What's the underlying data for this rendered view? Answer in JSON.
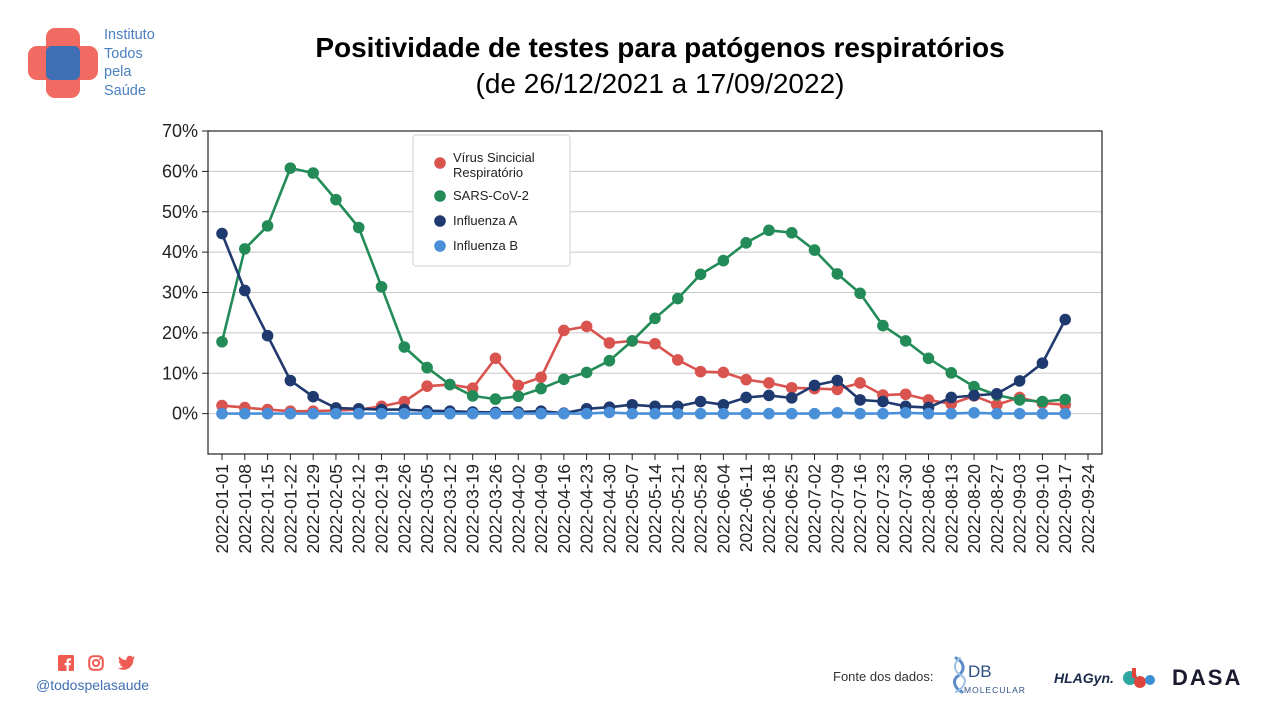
{
  "logo": {
    "lines": [
      "Instituto",
      "Todos",
      "pela",
      "Saúde"
    ],
    "colors": {
      "red": "#ef5b52",
      "blue": "#3f6fb5"
    }
  },
  "footer": {
    "handle": "@todospelasaude",
    "icons": [
      "facebook-icon",
      "instagram-icon",
      "twitter-icon"
    ],
    "fonte_label": "Fonte dos dados:",
    "partners": {
      "db_letters": "DB",
      "db_sub": "MOLECULAR",
      "hla": "HLAGyn.",
      "dasa": "DASA"
    }
  },
  "chart_data": {
    "type": "line",
    "title": "Positividade de testes para patógenos respiratórios",
    "subtitle": "(de 26/12/2021 a 17/09/2022)",
    "x": [
      "2022-01-01",
      "2022-01-08",
      "2022-01-15",
      "2022-01-22",
      "2022-01-29",
      "2022-02-05",
      "2022-02-12",
      "2022-02-19",
      "2022-02-26",
      "2022-03-05",
      "2022-03-12",
      "2022-03-19",
      "2022-03-26",
      "2022-04-02",
      "2022-04-09",
      "2022-04-16",
      "2022-04-23",
      "2022-04-30",
      "2022-05-07",
      "2022-05-14",
      "2022-05-21",
      "2022-05-28",
      "2022-06-04",
      "2022-06-11",
      "2022-06-18",
      "2022-06-25",
      "2022-07-02",
      "2022-07-09",
      "2022-07-16",
      "2022-07-23",
      "2022-07-30",
      "2022-08-06",
      "2022-08-13",
      "2022-08-20",
      "2022-08-27",
      "2022-09-03",
      "2022-09-10",
      "2022-09-17"
    ],
    "x_tick_labels": [
      "2022-01-01",
      "2022-01-08",
      "2022-01-15",
      "2022-01-22",
      "2022-01-29",
      "2022-02-05",
      "2022-02-12",
      "2022-02-19",
      "2022-02-26",
      "2022-03-05",
      "2022-03-12",
      "2022-03-19",
      "2022-03-26",
      "2022-04-02",
      "2022-04-09",
      "2022-04-16",
      "2022-04-23",
      "2022-04-30",
      "2022-05-07",
      "2022-05-14",
      "2022-05-21",
      "2022-05-28",
      "2022-06-04",
      "2022-06-11",
      "2022-06-18",
      "2022-06-25",
      "2022-07-02",
      "2022-07-09",
      "2022-07-16",
      "2022-07-23",
      "2022-07-30",
      "2022-08-06",
      "2022-08-13",
      "2022-08-20",
      "2022-08-27",
      "2022-09-03",
      "2022-09-10",
      "2022-09-17",
      "2022-09-24"
    ],
    "series": [
      {
        "name": "Vírus Sincicial Respiratório",
        "name_lines": [
          "Vírus Sincicial",
          "Respiratório"
        ],
        "color": "#d9534f",
        "values": [
          2.0,
          1.5,
          1.0,
          0.6,
          0.6,
          0.8,
          1.0,
          1.8,
          3.0,
          6.8,
          7.2,
          6.3,
          13.7,
          7.0,
          9.0,
          20.6,
          21.6,
          17.5,
          18.0,
          17.3,
          13.3,
          10.4,
          10.2,
          8.4,
          7.6,
          6.4,
          6.2,
          6.0,
          7.6,
          4.6,
          4.8,
          3.4,
          2.4,
          4.4,
          2.2,
          4.0,
          2.6,
          2.2
        ]
      },
      {
        "name": "SARS-CoV-2",
        "color": "#238b57",
        "values": [
          17.8,
          40.8,
          46.5,
          60.8,
          59.6,
          53.0,
          46.1,
          31.4,
          16.5,
          11.4,
          7.2,
          4.4,
          3.6,
          4.3,
          6.2,
          8.5,
          10.2,
          13.1,
          18.0,
          23.6,
          28.5,
          34.5,
          37.9,
          42.3,
          45.4,
          44.8,
          40.5,
          34.6,
          29.8,
          21.8,
          18.0,
          13.7,
          10.1,
          6.7,
          4.6,
          3.4,
          3.0,
          3.5
        ]
      },
      {
        "name": "Influenza A",
        "color": "#1f3a6e",
        "values": [
          44.6,
          30.5,
          19.3,
          8.2,
          4.2,
          1.4,
          1.2,
          1.0,
          1.0,
          0.7,
          0.6,
          0.4,
          0.3,
          0.4,
          0.6,
          0.1,
          1.2,
          1.6,
          2.2,
          1.8,
          1.8,
          3.0,
          2.2,
          4.0,
          4.5,
          3.9,
          7.0,
          8.2,
          3.4,
          3.0,
          1.8,
          1.5,
          4.0,
          4.5,
          4.9,
          8.1,
          12.5,
          23.3
        ]
      },
      {
        "name": "Influenza B",
        "color": "#4a90d9",
        "values": [
          0,
          0,
          0,
          0,
          0,
          0,
          0,
          0,
          0,
          0,
          0,
          0,
          0,
          0,
          0,
          0,
          0,
          0.3,
          0,
          0,
          0,
          0,
          0,
          0,
          0,
          0,
          0,
          0.2,
          0,
          0,
          0.2,
          0,
          0,
          0.2,
          0,
          0,
          0,
          0
        ]
      }
    ],
    "y_ticks": [
      "0%",
      "10%",
      "20%",
      "30%",
      "40%",
      "50%",
      "60%",
      "70%"
    ],
    "ylim": [
      -10,
      70
    ],
    "grid": "horizontal",
    "legend": "top-left"
  }
}
